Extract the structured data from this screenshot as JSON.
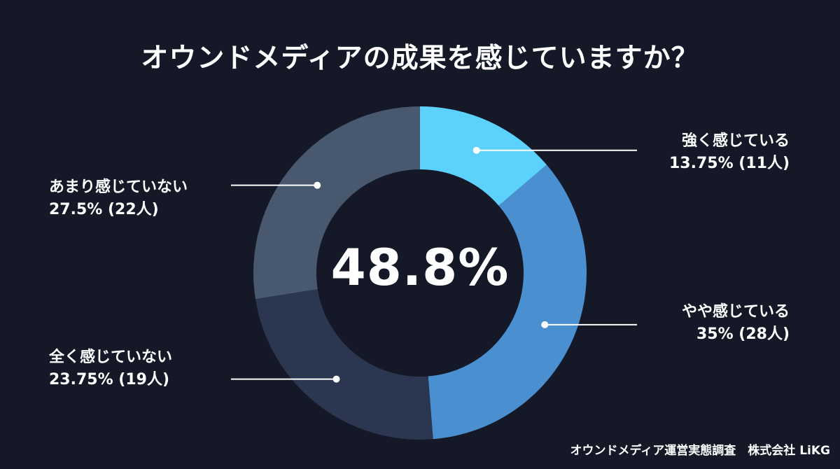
{
  "title": "オウンドメディアの成果を感じていますか？",
  "center_value": "48.8%",
  "footer": "オウンドメディア運営実態調査　株式会社 LiKG",
  "colors": {
    "background": "#141827",
    "leader_line": "#ffffff"
  },
  "chart_data": {
    "type": "pie",
    "donut": true,
    "title": "オウンドメディアの成果を感じていますか？",
    "center_label": "48.8%",
    "slices": [
      {
        "label": "強く感じている",
        "percent": 13.75,
        "count": 11,
        "value_text": "13.75% (11人)",
        "color": "#5cd1fb"
      },
      {
        "label": "やや感じている",
        "percent": 35,
        "count": 28,
        "value_text": "35% (28人)",
        "color": "#4a8fd0"
      },
      {
        "label": "全く感じていない",
        "percent": 23.75,
        "count": 19,
        "value_text": "23.75% (19人)",
        "color": "#2b3750"
      },
      {
        "label": "あまり感じていない",
        "percent": 27.5,
        "count": 22,
        "value_text": "27.5% (22人)",
        "color": "#48586f"
      }
    ]
  }
}
